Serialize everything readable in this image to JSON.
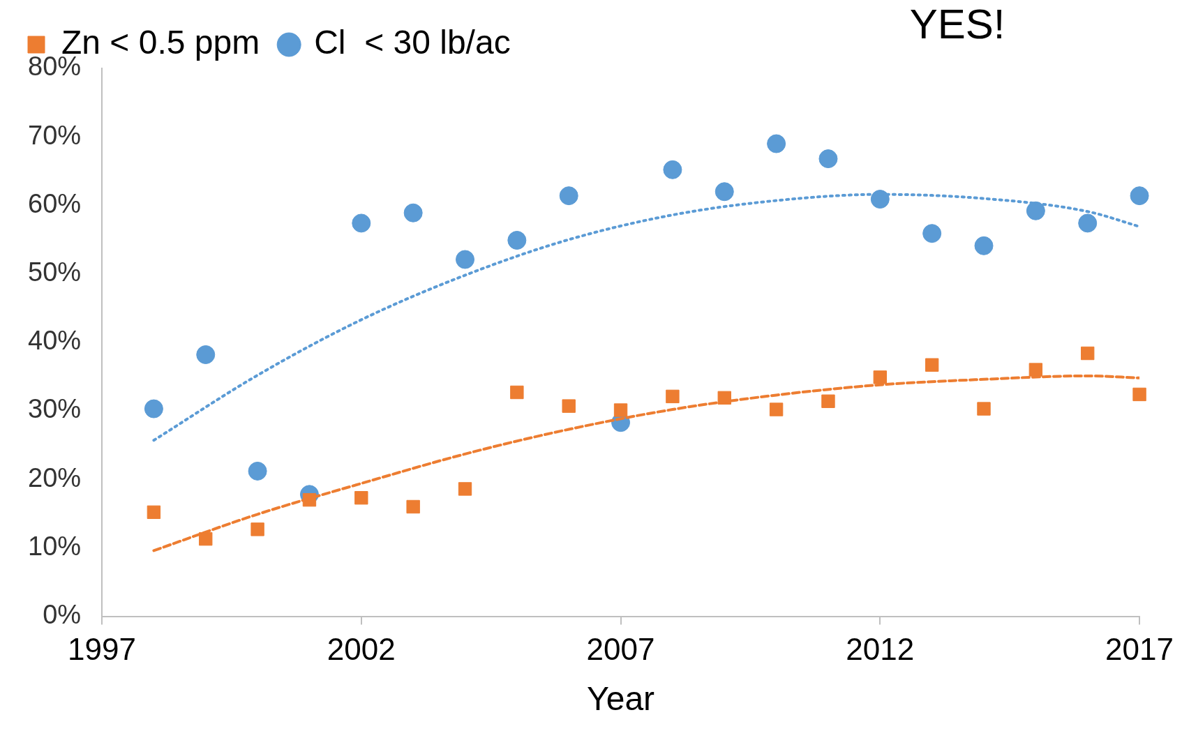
{
  "chart_data": {
    "type": "scatter",
    "xlabel": "Year",
    "x": [
      1998,
      1999,
      2000,
      2001,
      2002,
      2003,
      2004,
      2005,
      2006,
      2007,
      2008,
      2009,
      2010,
      2011,
      2012,
      2013,
      2014,
      2015,
      2016,
      2017
    ],
    "series": [
      {
        "name": "Cl  < 30 lb/ac",
        "color": "#5b9bd5",
        "marker": "circle",
        "values": [
          30.3,
          38.2,
          21.2,
          17.8,
          57.4,
          58.9,
          52.1,
          54.9,
          61.4,
          28.3,
          65.2,
          62.0,
          69.0,
          66.8,
          60.9,
          55.9,
          54.1,
          59.2,
          57.4,
          61.4
        ]
      },
      {
        "name": "Zn < 0.5 ppm",
        "color": "#ed7d31",
        "marker": "square",
        "values": [
          15.2,
          11.3,
          12.7,
          17.0,
          17.3,
          16.0,
          18.6,
          32.7,
          30.7,
          30.1,
          32.1,
          31.9,
          30.2,
          31.4,
          34.9,
          36.7,
          30.3,
          36.0,
          38.4,
          32.4
        ]
      },
      {
        "type": "line",
        "color": "#5b9bd5",
        "marker": "none",
        "line_style": "dotted",
        "x": [
          1998,
          2000,
          2002,
          2004,
          2006,
          2008,
          2010,
          2012,
          2014,
          2016,
          2017
        ],
        "values": [
          25.7,
          35.2,
          43.3,
          49.8,
          55.0,
          58.6,
          60.7,
          61.6,
          61.0,
          59.1,
          56.9
        ]
      },
      {
        "type": "line",
        "color": "#ed7d31",
        "marker": "none",
        "line_style": "dashed",
        "x": [
          1998,
          2000,
          2002,
          2004,
          2006,
          2008,
          2010,
          2012,
          2014,
          2016,
          2017
        ],
        "values": [
          9.6,
          14.9,
          19.4,
          23.7,
          27.3,
          30.2,
          32.3,
          33.8,
          34.6,
          35.1,
          34.8
        ]
      }
    ],
    "xlim": [
      1997,
      2017
    ],
    "xticks": [
      1997,
      2002,
      2007,
      2012,
      2017
    ],
    "ylim": [
      0,
      80
    ],
    "yticks": [
      {
        "value": 0,
        "label": "0%"
      },
      {
        "value": 10,
        "label": "10%"
      },
      {
        "value": 20,
        "label": "20%"
      },
      {
        "value": 30,
        "label": "30%"
      },
      {
        "value": 40,
        "label": "40%"
      },
      {
        "value": 50,
        "label": "50%"
      },
      {
        "value": 60,
        "label": "60%"
      },
      {
        "value": 70,
        "label": "70%"
      },
      {
        "value": 80,
        "label": "80%"
      }
    ],
    "grid": false,
    "legend": "top left",
    "annotations": [
      "YES!"
    ]
  }
}
